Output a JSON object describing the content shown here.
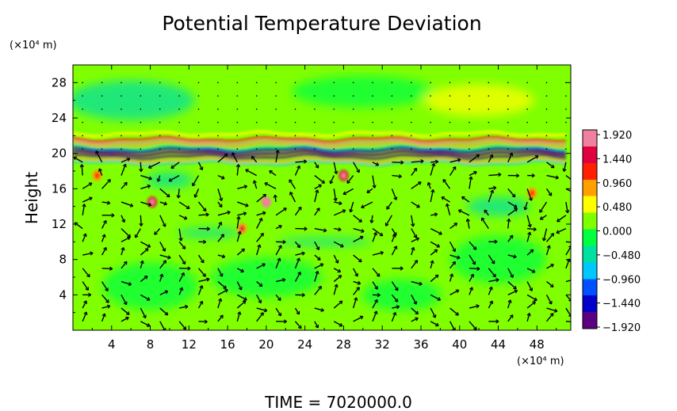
{
  "chart_data": {
    "type": "heatmap",
    "title": "Potential Temperature Deviation",
    "xlabel": "",
    "ylabel": "Height",
    "x_unit": "(×10⁴ m)",
    "y_unit": "(×10⁴ m)",
    "xlim": [
      0,
      51.5
    ],
    "ylim": [
      0,
      30
    ],
    "x_ticks": [
      "4",
      "8",
      "12",
      "16",
      "20",
      "24",
      "28",
      "32",
      "36",
      "40",
      "44",
      "48"
    ],
    "x_tick_values": [
      4,
      8,
      12,
      16,
      20,
      24,
      28,
      32,
      36,
      40,
      44,
      48
    ],
    "y_ticks": [
      "4",
      "8",
      "12",
      "16",
      "20",
      "24",
      "28"
    ],
    "y_tick_values": [
      4,
      8,
      12,
      16,
      20,
      24,
      28
    ],
    "colorbar": {
      "labels": [
        "1.920",
        "1.440",
        "0.960",
        "0.480",
        "0.000",
        "−0.480",
        "−0.960",
        "−1.440",
        "−1.920"
      ],
      "values": [
        1.92,
        1.44,
        0.96,
        0.48,
        0.0,
        -0.48,
        -0.96,
        -1.44,
        -1.92
      ],
      "range": [
        -1.92,
        1.92
      ],
      "colors": [
        "#5a0080",
        "#0000c8",
        "#0050ff",
        "#00c8ff",
        "#00e0a0",
        "#00ff40",
        "#80ff00",
        "#ffff00",
        "#ffa000",
        "#ff2000",
        "#e00040",
        "#f080a0"
      ]
    },
    "background_value": 0.0,
    "features": [
      {
        "desc": "warm band",
        "y": 21.3,
        "value": 1.6
      },
      {
        "desc": "cold band",
        "y": 20.2,
        "value": -1.8
      },
      {
        "desc": "cold band",
        "y": 19.7,
        "value": -1.9
      }
    ],
    "warm_patches": [
      {
        "x": 8.2,
        "y": 14.5,
        "value": 1.5
      },
      {
        "x": 20.0,
        "y": 14.5,
        "value": 1.7
      },
      {
        "x": 28.0,
        "y": 17.5,
        "value": 1.4
      },
      {
        "x": 17.5,
        "y": 11.5,
        "value": 0.9
      },
      {
        "x": 2.5,
        "y": 17.5,
        "value": 0.8
      },
      {
        "x": 47.5,
        "y": 15.5,
        "value": 0.7
      }
    ],
    "vectors_note": "wind vectors overlaid"
  },
  "footer": {
    "time_text": "TIME  =  7020000.0"
  }
}
